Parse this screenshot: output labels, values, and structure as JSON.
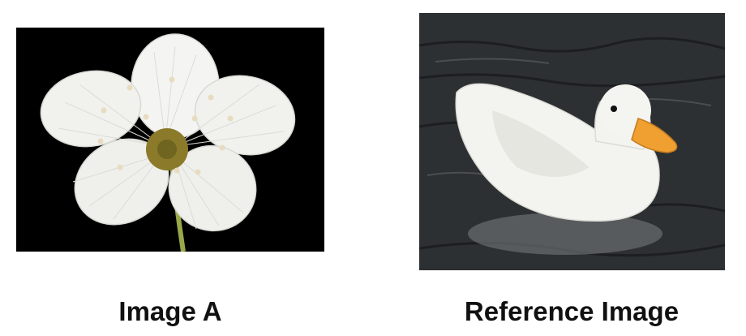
{
  "images": [
    {
      "caption": "Image A",
      "depicts": "flower-image",
      "background_color": "#000000"
    },
    {
      "caption": "Reference Image",
      "depicts": "duck-image",
      "background_color": "#2d3033"
    }
  ],
  "colors": {
    "petal": "#f4f4f2",
    "flower_center": "#8a7a2a",
    "stem": "#9aa84a",
    "duck_body": "#f3f3ef",
    "duck_beak": "#f0a030",
    "water": "#2d3033",
    "caption_text": "#111111"
  }
}
